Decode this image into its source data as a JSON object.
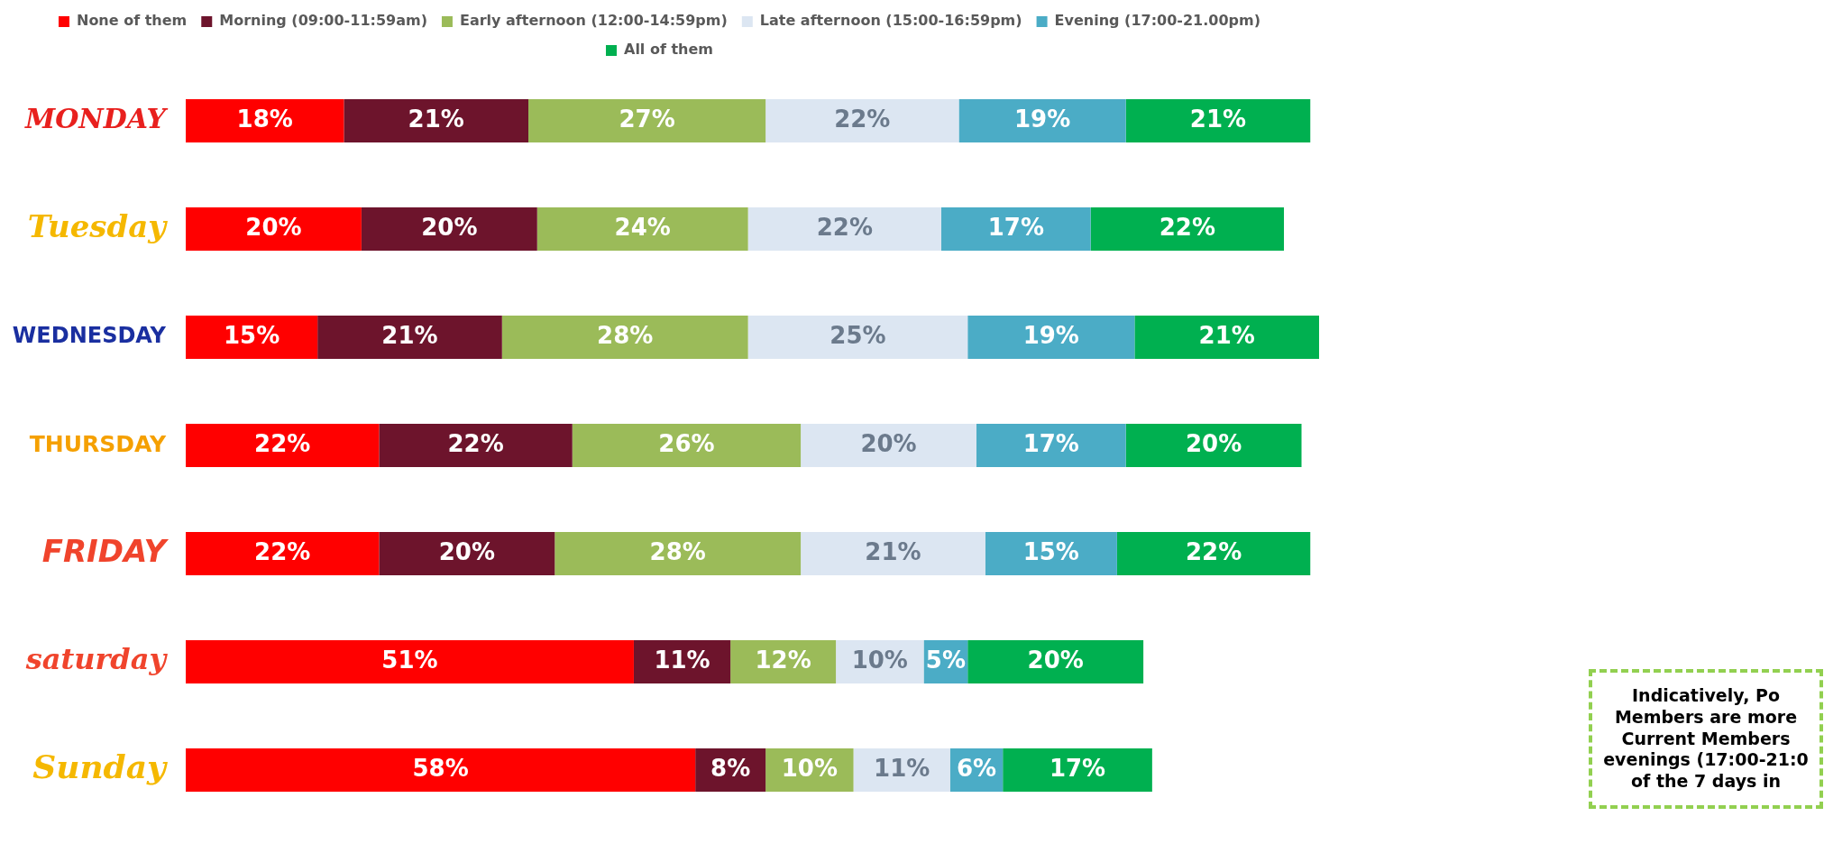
{
  "chart_data": {
    "type": "bar",
    "orientation": "horizontal",
    "stacked": true,
    "legend": "top",
    "categories": [
      "MONDAY",
      "Tuesday",
      "WEDNESDAY",
      "THURSDAY",
      "FRIDAY",
      "saturday",
      "Sunday"
    ],
    "series": [
      {
        "name": "None of them",
        "color": "#ff0000",
        "values": [
          18,
          20,
          15,
          22,
          22,
          51,
          58
        ],
        "value_labels": [
          "18%",
          "20%",
          "15%",
          "22%",
          "22%",
          "51%",
          "58%"
        ]
      },
      {
        "name": "Morning (09:00-11:59am)",
        "color": "#6d142c",
        "values": [
          21,
          20,
          21,
          22,
          20,
          11,
          8
        ],
        "value_labels": [
          "21%",
          "20%",
          "21%",
          "22%",
          "20%",
          "11%",
          "8%"
        ]
      },
      {
        "name": "Early afternoon (12:00-14:59pm)",
        "color": "#9bbb59",
        "values": [
          27,
          24,
          28,
          26,
          28,
          12,
          10
        ],
        "value_labels": [
          "27%",
          "24%",
          "28%",
          "26%",
          "28%",
          "12%",
          "10%"
        ]
      },
      {
        "name": "Late afternoon (15:00-16:59pm)",
        "color": "#dce6f2",
        "values": [
          22,
          22,
          25,
          20,
          21,
          10,
          11
        ],
        "value_labels": [
          "22%",
          "22%",
          "25%",
          "20%",
          "21%",
          "10%",
          "11%"
        ]
      },
      {
        "name": "Evening (17:00-21.00pm)",
        "color": "#4bacc6",
        "values": [
          19,
          17,
          19,
          17,
          15,
          5,
          6
        ],
        "value_labels": [
          "19%",
          "17%",
          "19%",
          "17%",
          "15%",
          "5%",
          "6%"
        ]
      },
      {
        "name": "All of them",
        "color": "#00b050",
        "values": [
          21,
          22,
          21,
          20,
          22,
          20,
          17
        ],
        "value_labels": [
          "21%",
          "22%",
          "21%",
          "20%",
          "22%",
          "20%",
          "17%"
        ]
      }
    ],
    "annotations": [
      "Indicatively, Po\nMembers are more\nCurrent Members\nevenings (17:00-21:0\nof the 7 days in"
    ]
  }
}
